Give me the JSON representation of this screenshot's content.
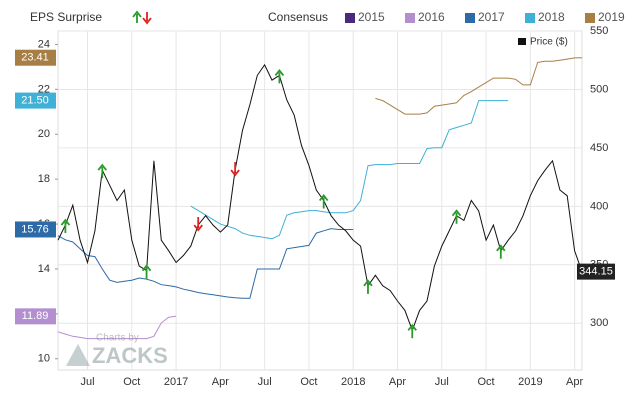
{
  "chart_data": {
    "type": "line",
    "eps_surprise_label": "EPS Surprise",
    "consensus_label": "Consensus",
    "logo": {
      "top": "Charts by",
      "name": "ZACKS"
    },
    "categories": [
      null,
      null,
      null,
      null,
      "Jul",
      null,
      null,
      null,
      null,
      null,
      "Oct",
      null,
      null,
      null,
      null,
      null,
      "2017",
      null,
      null,
      null,
      null,
      null,
      "Apr",
      null,
      null,
      null,
      null,
      null,
      "Jul",
      null,
      null,
      null,
      null,
      null,
      "Oct",
      null,
      null,
      null,
      null,
      null,
      "2018",
      null,
      null,
      null,
      null,
      null,
      "Apr",
      null,
      null,
      null,
      null,
      null,
      "Jul",
      null,
      null,
      null,
      null,
      null,
      "Oct",
      null,
      null,
      null,
      null,
      null,
      "2019",
      null,
      null,
      null,
      null,
      null,
      "Apr",
      null
    ],
    "ylim": [
      9.5,
      24.6
    ],
    "yticks": [
      10,
      12,
      14,
      16,
      18,
      20,
      22,
      24
    ],
    "y2lim": [
      260,
      550
    ],
    "y2ticks": [
      300,
      350,
      400,
      450,
      500,
      550
    ],
    "grid": true,
    "series": [
      {
        "name": "2015",
        "color": "#4b2a7b",
        "values": [
          null,
          null,
          null,
          null,
          null,
          null,
          null,
          null,
          null,
          null,
          null,
          null,
          null,
          null,
          null,
          null,
          null,
          null,
          null,
          null,
          null,
          null,
          null,
          null,
          null,
          null,
          null,
          null,
          null,
          null,
          null,
          null,
          null,
          null,
          null,
          null,
          null,
          null,
          null,
          null,
          null,
          null,
          null,
          null,
          null,
          null,
          null,
          null,
          null,
          null,
          null,
          null,
          null,
          null,
          null,
          null,
          null,
          null,
          null,
          null,
          null,
          null,
          null,
          null,
          null,
          null,
          null,
          null,
          null,
          null,
          null,
          null
        ]
      },
      {
        "name": "2016",
        "color": "#b48fd0",
        "values": [
          11.2,
          11.1,
          11.0,
          10.95,
          10.9,
          10.9,
          10.9,
          10.9,
          10.9,
          10.9,
          10.9,
          10.9,
          10.9,
          11.0,
          11.6,
          11.85,
          11.89,
          null,
          null,
          null,
          null,
          null,
          null,
          null,
          null,
          null,
          null,
          null,
          null,
          null,
          null,
          null,
          null,
          null,
          null,
          null,
          null,
          null,
          null,
          null,
          null,
          null,
          null,
          null,
          null,
          null,
          null,
          null,
          null,
          null,
          null,
          null,
          null,
          null,
          null,
          null,
          null,
          null,
          null,
          null,
          null,
          null,
          null,
          null,
          null,
          null,
          null,
          null,
          null,
          null,
          null,
          null
        ],
        "value_labels": [
          null,
          null,
          null,
          null,
          null,
          null,
          null,
          null,
          null,
          null,
          null,
          null,
          null,
          null,
          null,
          null,
          "11.89",
          null,
          null,
          null,
          null,
          null,
          null,
          null,
          null,
          null,
          null,
          null,
          null,
          null,
          null,
          null,
          null,
          null,
          null,
          null,
          null,
          null,
          null,
          null,
          null,
          null,
          null,
          null,
          null,
          null,
          null,
          null,
          null,
          null,
          null,
          null,
          null,
          null,
          null,
          null,
          null,
          null,
          null,
          null,
          null,
          null,
          null,
          null,
          null,
          null,
          null,
          null,
          null,
          null,
          null,
          null
        ]
      },
      {
        "name": "2017",
        "color": "#2d6aa8",
        "values": [
          15.48,
          15.3,
          15.2,
          14.9,
          14.6,
          14.55,
          14.0,
          13.5,
          13.4,
          13.45,
          13.5,
          13.6,
          13.55,
          13.45,
          13.3,
          13.26,
          13.2,
          13.1,
          13.03,
          12.95,
          12.9,
          12.85,
          12.8,
          12.75,
          12.72,
          12.7,
          12.7,
          14.0,
          14.0,
          14.0,
          14.0,
          14.9,
          14.95,
          15.0,
          15.05,
          15.6,
          15.7,
          15.8,
          15.76,
          15.76,
          15.76,
          null,
          null,
          null,
          null,
          null,
          null,
          null,
          null,
          null,
          null,
          null,
          null,
          null,
          null,
          null,
          null,
          null,
          null,
          null,
          null,
          null,
          null,
          null,
          null,
          null,
          null,
          null,
          null,
          null,
          null,
          null
        ],
        "value_labels": [
          null,
          null,
          null,
          null,
          null,
          null,
          null,
          null,
          null,
          null,
          null,
          null,
          null,
          null,
          null,
          null,
          null,
          null,
          null,
          null,
          null,
          null,
          null,
          null,
          null,
          null,
          null,
          null,
          null,
          null,
          null,
          null,
          null,
          null,
          null,
          null,
          null,
          null,
          null,
          null,
          "15.76",
          null,
          null,
          null,
          null,
          null,
          null,
          null,
          null,
          null,
          null,
          null,
          null,
          null,
          null,
          null,
          null,
          null,
          null,
          null,
          null,
          null,
          null,
          null,
          null,
          null,
          null,
          null,
          null,
          null,
          null,
          null
        ]
      },
      {
        "name": "2018",
        "color": "#3fb0d6",
        "values": [
          null,
          null,
          null,
          null,
          null,
          null,
          null,
          null,
          null,
          null,
          null,
          null,
          null,
          null,
          null,
          null,
          null,
          null,
          16.8,
          16.6,
          16.4,
          16.2,
          16.0,
          15.9,
          15.8,
          15.6,
          15.5,
          15.45,
          15.4,
          15.35,
          15.5,
          16.4,
          16.5,
          16.55,
          16.6,
          16.6,
          16.55,
          16.5,
          16.5,
          16.5,
          16.6,
          17.05,
          18.6,
          18.65,
          18.65,
          18.65,
          18.7,
          18.7,
          18.7,
          18.7,
          19.36,
          19.4,
          19.4,
          20.2,
          20.3,
          20.4,
          20.5,
          21.5,
          21.5,
          21.5,
          21.5,
          21.5,
          null,
          null,
          null,
          null,
          null,
          null,
          null,
          null,
          null,
          null
        ],
        "value_labels": [
          null,
          null,
          null,
          null,
          null,
          null,
          null,
          null,
          null,
          null,
          null,
          null,
          null,
          null,
          null,
          null,
          null,
          null,
          null,
          null,
          null,
          null,
          null,
          null,
          null,
          null,
          null,
          null,
          null,
          null,
          null,
          null,
          null,
          null,
          null,
          null,
          null,
          null,
          null,
          null,
          null,
          null,
          null,
          null,
          null,
          null,
          null,
          null,
          null,
          null,
          null,
          null,
          null,
          null,
          null,
          null,
          null,
          null,
          null,
          null,
          null,
          "21.50",
          null,
          null,
          null,
          null,
          null,
          null,
          null,
          null,
          null,
          null
        ]
      },
      {
        "name": "2019",
        "color": "#a77f44",
        "values": [
          null,
          null,
          null,
          null,
          null,
          null,
          null,
          null,
          null,
          null,
          null,
          null,
          null,
          null,
          null,
          null,
          null,
          null,
          null,
          null,
          null,
          null,
          null,
          null,
          null,
          null,
          null,
          null,
          null,
          null,
          null,
          null,
          null,
          null,
          null,
          null,
          null,
          null,
          null,
          null,
          null,
          null,
          null,
          21.6,
          21.5,
          21.3,
          21.1,
          20.9,
          20.9,
          20.9,
          20.95,
          21.25,
          21.3,
          21.35,
          21.4,
          21.73,
          21.9,
          22.1,
          22.3,
          22.5,
          22.5,
          22.5,
          22.45,
          22.2,
          22.2,
          23.2,
          23.25,
          23.25,
          23.3,
          23.35,
          23.4,
          23.41
        ],
        "value_labels": [
          null,
          null,
          null,
          null,
          null,
          null,
          null,
          null,
          null,
          null,
          null,
          null,
          null,
          null,
          null,
          null,
          null,
          null,
          null,
          null,
          null,
          null,
          null,
          null,
          null,
          null,
          null,
          null,
          null,
          null,
          null,
          null,
          null,
          null,
          null,
          null,
          null,
          null,
          null,
          null,
          null,
          null,
          null,
          null,
          null,
          null,
          null,
          null,
          null,
          null,
          null,
          null,
          null,
          null,
          null,
          null,
          null,
          null,
          null,
          null,
          null,
          null,
          null,
          null,
          null,
          null,
          null,
          null,
          null,
          null,
          null,
          "23.41"
        ]
      },
      {
        "name": "Price ($)",
        "color": "#111111",
        "axis": "y2",
        "values": [
          371,
          384,
          401,
          371,
          352,
          379,
          431,
          418,
          405,
          414,
          371,
          349,
          345,
          439,
          371,
          362,
          352,
          358,
          366,
          384,
          392,
          384,
          378,
          384,
          431,
          465,
          487,
          512,
          521,
          508,
          512,
          491,
          478,
          452,
          435,
          414,
          405,
          392,
          384,
          379,
          371,
          366,
          332,
          341,
          332,
          328,
          319,
          311,
          294,
          311,
          319,
          349,
          366,
          379,
          392,
          388,
          405,
          396,
          371,
          384,
          362,
          371,
          379,
          392,
          409,
          422,
          431,
          439,
          414,
          409,
          362,
          344.15
        ]
      }
    ],
    "surprises": [
      {
        "index": 1,
        "direction": "up"
      },
      {
        "index": 6,
        "direction": "up"
      },
      {
        "index": 12,
        "direction": "up"
      },
      {
        "index": 19,
        "direction": "down"
      },
      {
        "index": 24,
        "direction": "down"
      },
      {
        "index": 30,
        "direction": "up"
      },
      {
        "index": 36,
        "direction": "up"
      },
      {
        "index": 42,
        "direction": "up"
      },
      {
        "index": 48,
        "direction": "up"
      },
      {
        "index": 54,
        "direction": "up"
      },
      {
        "index": 60,
        "direction": "up"
      }
    ]
  }
}
